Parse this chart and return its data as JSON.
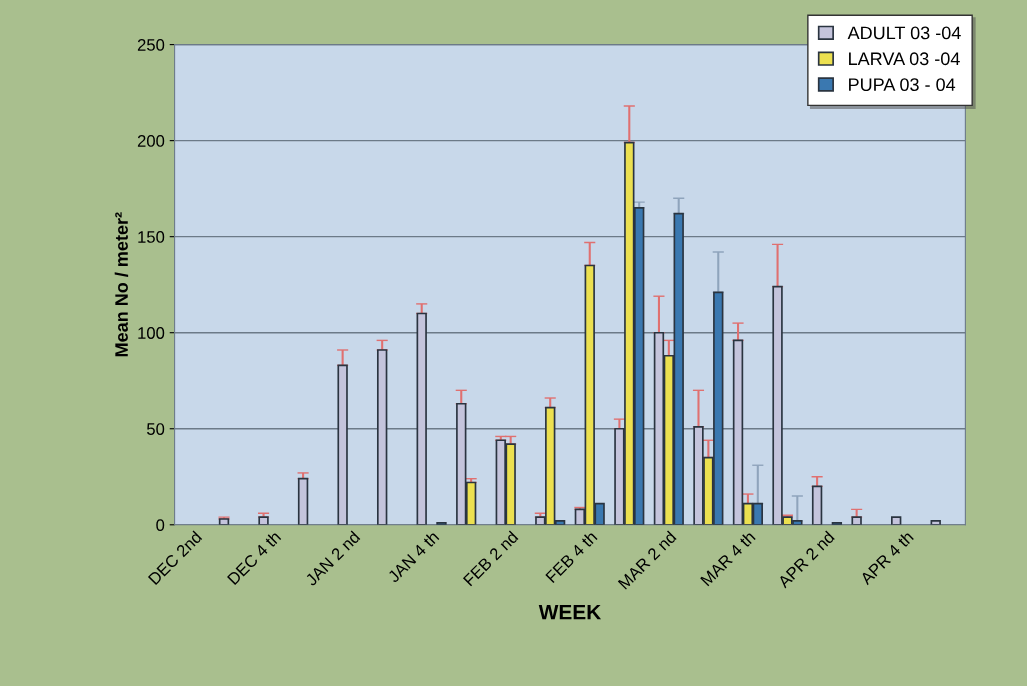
{
  "chart_data": {
    "type": "bar",
    "xlabel": "WEEK",
    "ylabel": "Mean No / meter²",
    "categories": [
      "DEC 2nd",
      null,
      "DEC 4 th",
      null,
      "JAN 2 nd",
      null,
      "JAN 4 th",
      null,
      "FEB 2 nd",
      null,
      "FEB 4 th",
      null,
      "MAR 2 nd",
      null,
      "MAR 4 th",
      null,
      "APR 2 nd",
      null,
      "APR 4 th",
      null
    ],
    "series": [
      {
        "name": "ADULT 03 -04",
        "color": "#c4c4dc",
        "values": [
          null,
          3,
          4,
          24,
          83,
          91,
          110,
          63,
          44,
          4,
          8,
          50,
          100,
          51,
          96,
          124,
          20,
          4,
          4,
          2
        ],
        "errors": [
          null,
          [
            3,
            4
          ],
          [
            4,
            6
          ],
          [
            24,
            27
          ],
          [
            83,
            91
          ],
          [
            91,
            96
          ],
          [
            110,
            115
          ],
          [
            63,
            70
          ],
          [
            44,
            46
          ],
          [
            4,
            6
          ],
          [
            8,
            9
          ],
          [
            50,
            55
          ],
          [
            100,
            119
          ],
          [
            51,
            70
          ],
          [
            96,
            105
          ],
          [
            124,
            146
          ],
          [
            20,
            25
          ],
          [
            4,
            8
          ],
          null,
          null
        ]
      },
      {
        "name": "LARVA 03 -04",
        "color": "#ece050",
        "values": [
          null,
          null,
          null,
          null,
          null,
          null,
          null,
          22,
          42,
          61,
          135,
          199,
          88,
          35,
          11,
          4,
          null,
          null,
          null,
          null
        ],
        "errors": [
          null,
          null,
          null,
          null,
          null,
          null,
          null,
          [
            22,
            24
          ],
          [
            42,
            46
          ],
          [
            61,
            66
          ],
          [
            135,
            147
          ],
          [
            199,
            218
          ],
          [
            88,
            96
          ],
          [
            35,
            44
          ],
          [
            11,
            16
          ],
          [
            4,
            5
          ],
          null,
          null,
          null,
          null
        ]
      },
      {
        "name": "PUPA 03 - 04",
        "color": "#3a78b0",
        "values": [
          null,
          null,
          null,
          null,
          null,
          null,
          1,
          null,
          null,
          2,
          11,
          165,
          162,
          121,
          11,
          2,
          1,
          null,
          null,
          null
        ],
        "errors": [
          null,
          null,
          null,
          null,
          null,
          null,
          null,
          null,
          null,
          null,
          null,
          [
            165,
            168
          ],
          [
            162,
            170
          ],
          [
            121,
            142
          ],
          [
            11,
            31
          ],
          [
            2,
            15
          ],
          null,
          null,
          null,
          null
        ]
      }
    ],
    "ylim": [
      0,
      250
    ],
    "yticks": [
      0,
      50,
      100,
      150,
      200,
      250
    ],
    "grid": "y",
    "legend": "top right"
  }
}
